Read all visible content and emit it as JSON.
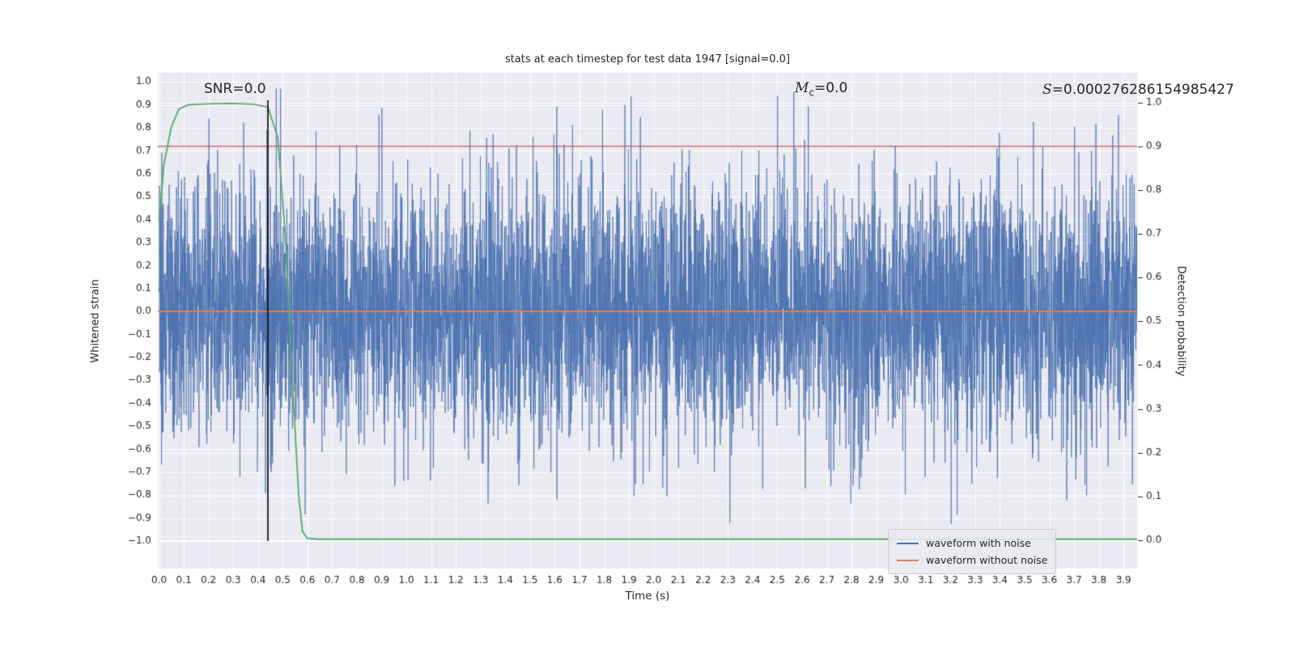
{
  "figure": {
    "title": "stats at each timestep for test data 1947 [signal=0.0]",
    "xlabel": "Time (s)",
    "ylabel_left": "Whitened strain",
    "ylabel_right": "Detection probability",
    "annotations": {
      "snr": "SNR=0.0",
      "mc_symbol": "M",
      "mc_sub": "c",
      "mc_value": "=0.0",
      "s_symbol": "S",
      "s_value": "=0.000276286154985427"
    },
    "legend": [
      {
        "label": "waveform with noise",
        "color": "#4c72b0"
      },
      {
        "label": "waveform without noise",
        "color": "#dd8452"
      }
    ]
  },
  "chart_data": {
    "type": "line",
    "title": "stats at each timestep for test data 1947 [signal=0.0]",
    "xlabel": "Time (s)",
    "ylabel_left": "Whitened strain",
    "ylabel_right": "Detection probability",
    "axes_bg": "#eaeaf2",
    "grid_color": "#ffffff",
    "tick_color": "#262626",
    "xlim": [
      -0.005,
      3.955
    ],
    "xticks": {
      "start": 0.0,
      "end": 3.9,
      "step": 0.1
    },
    "ylim_left": [
      -1.12,
      1.04
    ],
    "yticks_left": {
      "start": -1.0,
      "end": 1.0,
      "step": 0.1
    },
    "ylim_right": [
      -0.065,
      1.068
    ],
    "yticks_right": {
      "start": 0.0,
      "end": 1.0,
      "step": 0.1
    },
    "series": {
      "noise_waveform": {
        "name": "waveform with noise",
        "axis": "left",
        "color": "#4c72b0",
        "kind": "gaussian_noise",
        "seed": 1947,
        "n": 6000,
        "std": 0.27,
        "clip": 0.97,
        "t_start": 0.0,
        "t_end": 3.955
      },
      "clean_waveform": {
        "name": "waveform without noise",
        "axis": "left",
        "color": "#dd8452",
        "kind": "constant",
        "value": 0.0
      },
      "threshold_line": {
        "axis": "right",
        "color": "#c44e52",
        "kind": "constant",
        "value": 0.9
      },
      "detection_probability": {
        "axis": "right",
        "color": "#55a868",
        "kind": "points",
        "points": [
          [
            0.0,
            0.73
          ],
          [
            0.02,
            0.86
          ],
          [
            0.05,
            0.945
          ],
          [
            0.08,
            0.985
          ],
          [
            0.12,
            0.995
          ],
          [
            0.2,
            0.997
          ],
          [
            0.3,
            0.998
          ],
          [
            0.38,
            0.996
          ],
          [
            0.44,
            0.99
          ],
          [
            0.48,
            0.92
          ],
          [
            0.51,
            0.7
          ],
          [
            0.54,
            0.35
          ],
          [
            0.565,
            0.1
          ],
          [
            0.58,
            0.02
          ],
          [
            0.6,
            0.004
          ],
          [
            0.65,
            0.002
          ],
          [
            3.955,
            0.002
          ]
        ]
      },
      "event_marker": {
        "axis": "left",
        "color": "#000000",
        "kind": "vline",
        "x": 0.44,
        "y_from": -1.0,
        "y_to": 0.92
      }
    }
  }
}
